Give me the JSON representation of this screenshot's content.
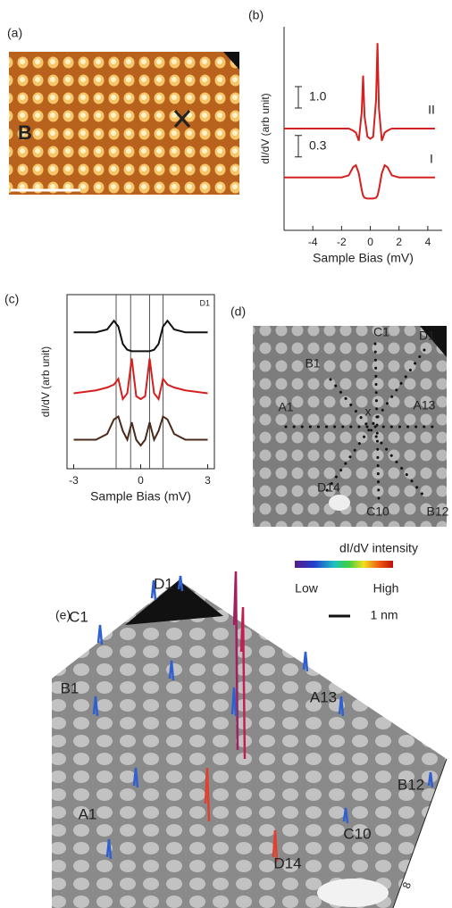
{
  "chart_data": [
    {
      "type": "line",
      "panel": "(b)",
      "x": [
        -6,
        -5,
        -4,
        -3,
        -2,
        -1.5,
        -1.2,
        -1,
        -0.8,
        -0.6,
        -0.5,
        -0.4,
        -0.2,
        0,
        0.2,
        0.4,
        0.5,
        0.6,
        0.8,
        1,
        1.2,
        1.5,
        2,
        3,
        4,
        4.5
      ],
      "xlim": [
        -6,
        5
      ],
      "xticks": [
        -4,
        -2,
        0,
        2,
        4
      ],
      "ylim": [
        0,
        5
      ],
      "x_label": "Sample Bias (mV)",
      "y_label": "dI/dV (arb unit)",
      "series": [
        {
          "name": "II",
          "color": "#d42020",
          "values": [
            2.5,
            2.5,
            2.5,
            2.5,
            2.5,
            2.5,
            2.45,
            2.4,
            2.2,
            2.9,
            3.8,
            2.8,
            2.3,
            2.25,
            2.3,
            3.2,
            4.6,
            3.0,
            2.2,
            2.4,
            2.45,
            2.5,
            2.5,
            2.5,
            2.5,
            2.5
          ]
        },
        {
          "name": "I",
          "color": "#d42020",
          "values": [
            1.3,
            1.3,
            1.3,
            1.3,
            1.3,
            1.35,
            1.55,
            1.6,
            1.4,
            1.0,
            0.85,
            0.8,
            0.78,
            0.78,
            0.78,
            0.8,
            0.85,
            1.0,
            1.4,
            1.6,
            1.55,
            1.35,
            1.3,
            1.3,
            1.3,
            1.3
          ]
        }
      ],
      "scale_labels": [
        "1.0",
        "0.3"
      ]
    },
    {
      "type": "line",
      "panel": "(c)",
      "label": "D1",
      "x": [
        -3,
        -2,
        -1.5,
        -1.2,
        -1,
        -0.8,
        -0.6,
        -0.4,
        -0.2,
        0,
        0.2,
        0.4,
        0.6,
        0.8,
        1,
        1.2,
        1.5,
        2,
        3
      ],
      "xlim": [
        -3.3,
        3.3
      ],
      "xticks": [
        -3,
        0,
        3
      ],
      "ylim": [
        0,
        6
      ],
      "x_label": "Sample Bias (mV)",
      "y_label": "dI/dV (arb unit)",
      "vlines": [
        -1.1,
        -0.45,
        0.4,
        1.0
      ],
      "series": [
        {
          "color": "#111111",
          "values": [
            4.7,
            4.7,
            4.8,
            5.1,
            4.9,
            4.3,
            4.1,
            4.05,
            4.05,
            4.05,
            4.05,
            4.05,
            4.1,
            4.3,
            4.9,
            5.1,
            4.8,
            4.7,
            4.7
          ]
        },
        {
          "color": "#d42020",
          "values": [
            2.6,
            2.7,
            2.8,
            2.9,
            3.1,
            2.4,
            2.6,
            3.8,
            2.5,
            2.4,
            2.5,
            3.8,
            2.6,
            2.4,
            3.1,
            2.9,
            2.8,
            2.7,
            2.6
          ]
        },
        {
          "color": "#4a2a1a",
          "values": [
            1.0,
            1.0,
            1.2,
            1.7,
            1.8,
            1.3,
            1.0,
            1.6,
            1.0,
            0.8,
            1.0,
            1.6,
            1.0,
            1.3,
            1.8,
            1.7,
            1.2,
            1.0,
            1.0
          ]
        }
      ]
    }
  ],
  "panels": {
    "a": {
      "label": "(a)",
      "site": "B"
    },
    "d": {
      "label": "(d)",
      "points": [
        "C1",
        "D1",
        "B1",
        "A13",
        "A1",
        "x",
        "D14",
        "C10",
        "B12"
      ]
    },
    "e": {
      "label": "(e)",
      "colorbar_title": "dI/dV intensity",
      "low": "Low",
      "high": "High",
      "scale": "1 nm",
      "points": [
        "D1",
        "C1",
        "A13",
        "B1",
        "B12",
        "A1",
        "C10",
        "D14"
      ],
      "axis_tick": "8"
    }
  }
}
